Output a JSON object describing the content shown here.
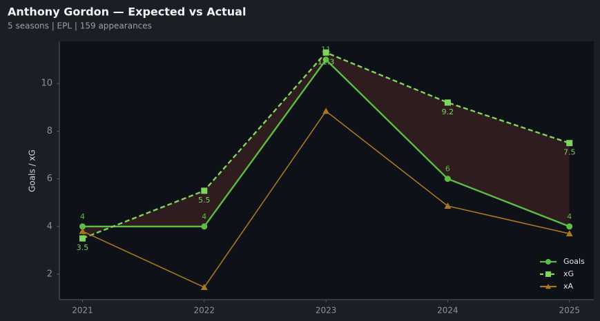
{
  "chart_data": {
    "type": "line",
    "title": "Anthony Gordon — Expected vs Actual",
    "subtitle": "5 seasons | EPL | 159 appearances",
    "ylabel": "Goals / xG",
    "x": [
      2021,
      2022,
      2023,
      2024,
      2025
    ],
    "xlim": [
      2020.81,
      2025.2
    ],
    "xticks": [
      2021,
      2022,
      2023,
      2024,
      2025
    ],
    "ylim": [
      0.93,
      11.77
    ],
    "yticks": [
      2,
      4,
      6,
      8,
      10
    ],
    "legend": "lower right",
    "fill_between": [
      0,
      1
    ],
    "fill_color": "#2e1c1f",
    "series": [
      {
        "name": "Goals",
        "color": "#5cbd45",
        "marker": "circle",
        "dash": false,
        "labels": "above",
        "values": [
          4,
          4,
          11,
          6,
          4
        ]
      },
      {
        "name": "xG",
        "color": "#7fd45e",
        "marker": "square",
        "dash": true,
        "labels": "below",
        "values": [
          3.5,
          5.5,
          11.3,
          9.2,
          7.5
        ]
      },
      {
        "name": "xA",
        "color": "#a8771f",
        "marker": "triangle",
        "dash": false,
        "values": [
          3.8,
          1.45,
          8.84,
          4.86,
          3.7
        ]
      }
    ]
  }
}
